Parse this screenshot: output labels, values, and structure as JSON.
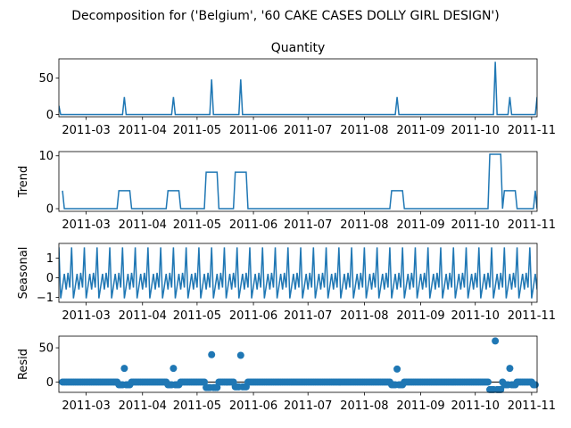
{
  "figure_title": "Decomposition for ('Belgium', '60 CAKE CASES DOLLY GIRL DESIGN')",
  "series_color": "#1f77b4",
  "chart_data": [
    {
      "type": "line",
      "panel": "observed",
      "title": "Quantity",
      "ylabel": "",
      "ylim": [
        -3,
        76
      ],
      "yticks": [
        0,
        50
      ],
      "xlim": [
        "2011-02-14",
        "2011-11-04"
      ],
      "xticks": [
        "2011-03",
        "2011-04",
        "2011-05",
        "2011-06",
        "2011-07",
        "2011-08",
        "2011-09",
        "2011-10",
        "2011-11"
      ],
      "baseline": 0,
      "spikes": [
        {
          "x": "2011-02-14",
          "y": 12
        },
        {
          "x": "2011-03-22",
          "y": 24
        },
        {
          "x": "2011-04-18",
          "y": 24
        },
        {
          "x": "2011-05-09",
          "y": 48
        },
        {
          "x": "2011-05-25",
          "y": 48
        },
        {
          "x": "2011-08-19",
          "y": 24
        },
        {
          "x": "2011-10-12",
          "y": 72
        },
        {
          "x": "2011-10-20",
          "y": 24
        },
        {
          "x": "2011-11-04",
          "y": 24
        }
      ]
    },
    {
      "type": "line",
      "panel": "trend",
      "title": "",
      "ylabel": "Trend",
      "ylim": [
        -0.5,
        10.8
      ],
      "yticks": [
        0,
        10
      ],
      "xlim": [
        "2011-02-14",
        "2011-11-04"
      ],
      "xticks": [
        "2011-03",
        "2011-04",
        "2011-05",
        "2011-06",
        "2011-07",
        "2011-08",
        "2011-09",
        "2011-10",
        "2011-11"
      ],
      "baseline": 0,
      "start": "2011-02-16",
      "end": "2011-11-04",
      "plateaus": [
        {
          "from": "2011-02-16",
          "to": "2011-02-16",
          "y": 3.4
        },
        {
          "from": "2011-03-19",
          "to": "2011-03-25",
          "y": 3.4
        },
        {
          "from": "2011-04-15",
          "to": "2011-04-21",
          "y": 3.4
        },
        {
          "from": "2011-05-06",
          "to": "2011-05-12",
          "y": 6.9
        },
        {
          "from": "2011-05-22",
          "to": "2011-05-28",
          "y": 6.9
        },
        {
          "from": "2011-08-16",
          "to": "2011-08-22",
          "y": 3.4
        },
        {
          "from": "2011-10-09",
          "to": "2011-10-15",
          "y": 10.3
        },
        {
          "from": "2011-10-17",
          "to": "2011-10-23",
          "y": 3.4
        },
        {
          "from": "2011-11-03",
          "to": "2011-11-03",
          "y": 3.4
        }
      ]
    },
    {
      "type": "line",
      "panel": "seasonal",
      "title": "",
      "ylabel": "Seasonal",
      "ylim": [
        -1.25,
        1.75
      ],
      "yticks": [
        -1,
        0,
        1
      ],
      "xlim": [
        "2011-02-14",
        "2011-11-04"
      ],
      "xticks": [
        "2011-03",
        "2011-04",
        "2011-05",
        "2011-06",
        "2011-07",
        "2011-08",
        "2011-09",
        "2011-10",
        "2011-11"
      ],
      "start": "2011-02-14",
      "end": "2011-11-04",
      "period_days": 7,
      "weekly_pattern": [
        1.55,
        -1.05,
        -0.45,
        0.2,
        -0.6,
        0.25,
        -0.5
      ]
    },
    {
      "type": "scatter",
      "panel": "resid",
      "title": "",
      "ylabel": "Resid",
      "ylim": [
        -15,
        67
      ],
      "yticks": [
        0,
        50
      ],
      "xlim": [
        "2011-02-14",
        "2011-11-04"
      ],
      "xticks": [
        "2011-03",
        "2011-04",
        "2011-05",
        "2011-06",
        "2011-07",
        "2011-08",
        "2011-09",
        "2011-10",
        "2011-11"
      ],
      "reference_line": 0,
      "start": "2011-02-16",
      "end": "2011-11-03",
      "outliers": [
        {
          "x": "2011-03-22",
          "y": 20
        },
        {
          "x": "2011-04-18",
          "y": 20
        },
        {
          "x": "2011-05-09",
          "y": 40
        },
        {
          "x": "2011-05-25",
          "y": 39
        },
        {
          "x": "2011-08-19",
          "y": 19
        },
        {
          "x": "2011-10-12",
          "y": 60
        },
        {
          "x": "2011-10-20",
          "y": 20
        }
      ],
      "dips": [
        {
          "from": "2011-03-19",
          "to": "2011-03-25",
          "y": -4
        },
        {
          "from": "2011-04-15",
          "to": "2011-04-21",
          "y": -4
        },
        {
          "from": "2011-05-06",
          "to": "2011-05-12",
          "y": -8
        },
        {
          "from": "2011-05-22",
          "to": "2011-05-28",
          "y": -7
        },
        {
          "from": "2011-08-16",
          "to": "2011-08-22",
          "y": -4
        },
        {
          "from": "2011-10-09",
          "to": "2011-10-15",
          "y": -11
        },
        {
          "from": "2011-10-17",
          "to": "2011-10-23",
          "y": -4
        },
        {
          "from": "2011-11-02",
          "to": "2011-11-03",
          "y": -4
        }
      ]
    }
  ]
}
